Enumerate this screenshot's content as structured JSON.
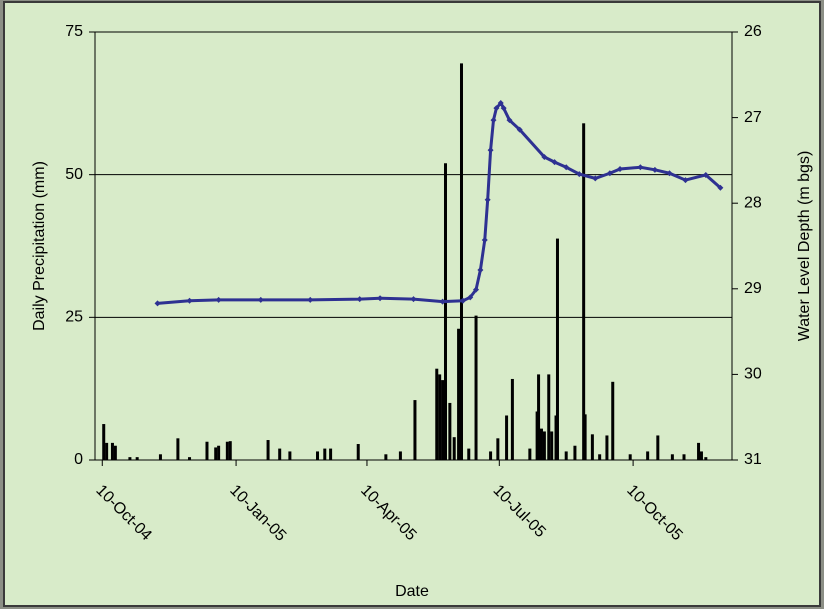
{
  "chart_data": {
    "type": "bar-line",
    "x_label": "Date",
    "y_label": "Daily Precipitation (mm)",
    "y2_label": "Water Level Depth (m bgs)",
    "xlim": [
      "2004-10-05",
      "2005-12-17"
    ],
    "xticks": [
      {
        "value": "2004-10-10",
        "label": "10-Oct-04"
      },
      {
        "value": "2005-01-10",
        "label": "10-Jan-05"
      },
      {
        "value": "2005-04-10",
        "label": "10-Apr-05"
      },
      {
        "value": "2005-07-10",
        "label": "10-Jul-05"
      },
      {
        "value": "2005-10-10",
        "label": "10-Oct-05"
      }
    ],
    "ylim": [
      0,
      75
    ],
    "yticks": [
      0,
      25,
      50,
      75
    ],
    "y2lim": [
      31,
      26
    ],
    "y2ticks": [
      26,
      27,
      28,
      29,
      30,
      31
    ],
    "grid": true,
    "series": [
      {
        "name": "Daily Precipitation",
        "kind": "bar",
        "color": "#000000",
        "x": [
          "2004-10-11",
          "2004-10-13",
          "2004-10-17",
          "2004-10-19",
          "2004-10-29",
          "2004-11-03",
          "2004-11-19",
          "2004-12-01",
          "2004-12-09",
          "2004-12-21",
          "2004-12-27",
          "2004-12-29",
          "2005-01-04",
          "2005-01-06",
          "2005-02-01",
          "2005-02-09",
          "2005-02-16",
          "2005-03-07",
          "2005-03-12",
          "2005-03-16",
          "2005-04-04",
          "2005-04-23",
          "2005-05-03",
          "2005-05-13",
          "2005-05-28",
          "2005-05-30",
          "2005-06-01",
          "2005-06-03",
          "2005-06-06",
          "2005-06-09",
          "2005-06-12",
          "2005-06-14",
          "2005-06-19",
          "2005-06-24",
          "2005-07-04",
          "2005-07-09",
          "2005-07-15",
          "2005-07-19",
          "2005-07-31",
          "2005-08-05",
          "2005-08-06",
          "2005-08-08",
          "2005-08-10",
          "2005-08-13",
          "2005-08-15",
          "2005-08-18",
          "2005-08-19",
          "2005-08-25",
          "2005-08-31",
          "2005-09-06",
          "2005-09-07",
          "2005-09-12",
          "2005-09-17",
          "2005-09-22",
          "2005-09-26",
          "2005-10-08",
          "2005-10-20",
          "2005-10-27",
          "2005-11-06",
          "2005-11-14",
          "2005-11-24",
          "2005-11-26",
          "2005-11-29"
        ],
        "values": [
          6.3,
          3,
          3,
          2.5,
          0.5,
          0.5,
          1,
          3.8,
          0.5,
          3.2,
          2.2,
          2.5,
          3.2,
          3.3,
          3.5,
          2,
          1.5,
          1.5,
          2,
          2,
          2.8,
          1,
          1.5,
          10.5,
          16,
          15,
          14,
          52,
          10,
          4,
          23,
          69.5,
          2,
          25.3,
          1.5,
          3.8,
          7.8,
          14.2,
          2,
          8.5,
          15,
          5.5,
          5,
          15,
          5,
          7.8,
          38.8,
          1.5,
          2.5,
          59,
          8,
          4.5,
          1,
          4.3,
          13.7,
          1,
          1.5,
          4.3,
          1,
          1,
          3,
          1.5,
          0.5
        ]
      },
      {
        "name": "Water Level Depth",
        "kind": "line",
        "axis": "y2",
        "color": "#2e3192",
        "x": [
          "2004-11-17",
          "2004-12-09",
          "2004-12-29",
          "2005-01-27",
          "2005-03-02",
          "2005-04-05",
          "2005-04-19",
          "2005-05-12",
          "2005-06-01",
          "2005-06-15",
          "2005-06-20",
          "2005-06-24",
          "2005-06-27",
          "2005-06-30",
          "2005-07-02",
          "2005-07-04",
          "2005-07-06",
          "2005-07-08",
          "2005-07-11",
          "2005-07-13",
          "2005-07-17",
          "2005-07-24",
          "2005-08-10",
          "2005-08-17",
          "2005-08-25",
          "2005-09-03",
          "2005-09-14",
          "2005-09-24",
          "2005-10-01",
          "2005-10-15",
          "2005-10-25",
          "2005-11-04",
          "2005-11-15",
          "2005-11-29",
          "2005-12-09"
        ],
        "values": [
          29.17,
          29.14,
          29.13,
          29.13,
          29.13,
          29.12,
          29.11,
          29.12,
          29.15,
          29.14,
          29.1,
          29.01,
          28.78,
          28.43,
          27.96,
          27.38,
          27.03,
          26.89,
          26.83,
          26.89,
          27.03,
          27.14,
          27.46,
          27.52,
          27.58,
          27.66,
          27.71,
          27.65,
          27.6,
          27.58,
          27.61,
          27.65,
          27.73,
          27.67,
          27.82
        ]
      }
    ]
  }
}
